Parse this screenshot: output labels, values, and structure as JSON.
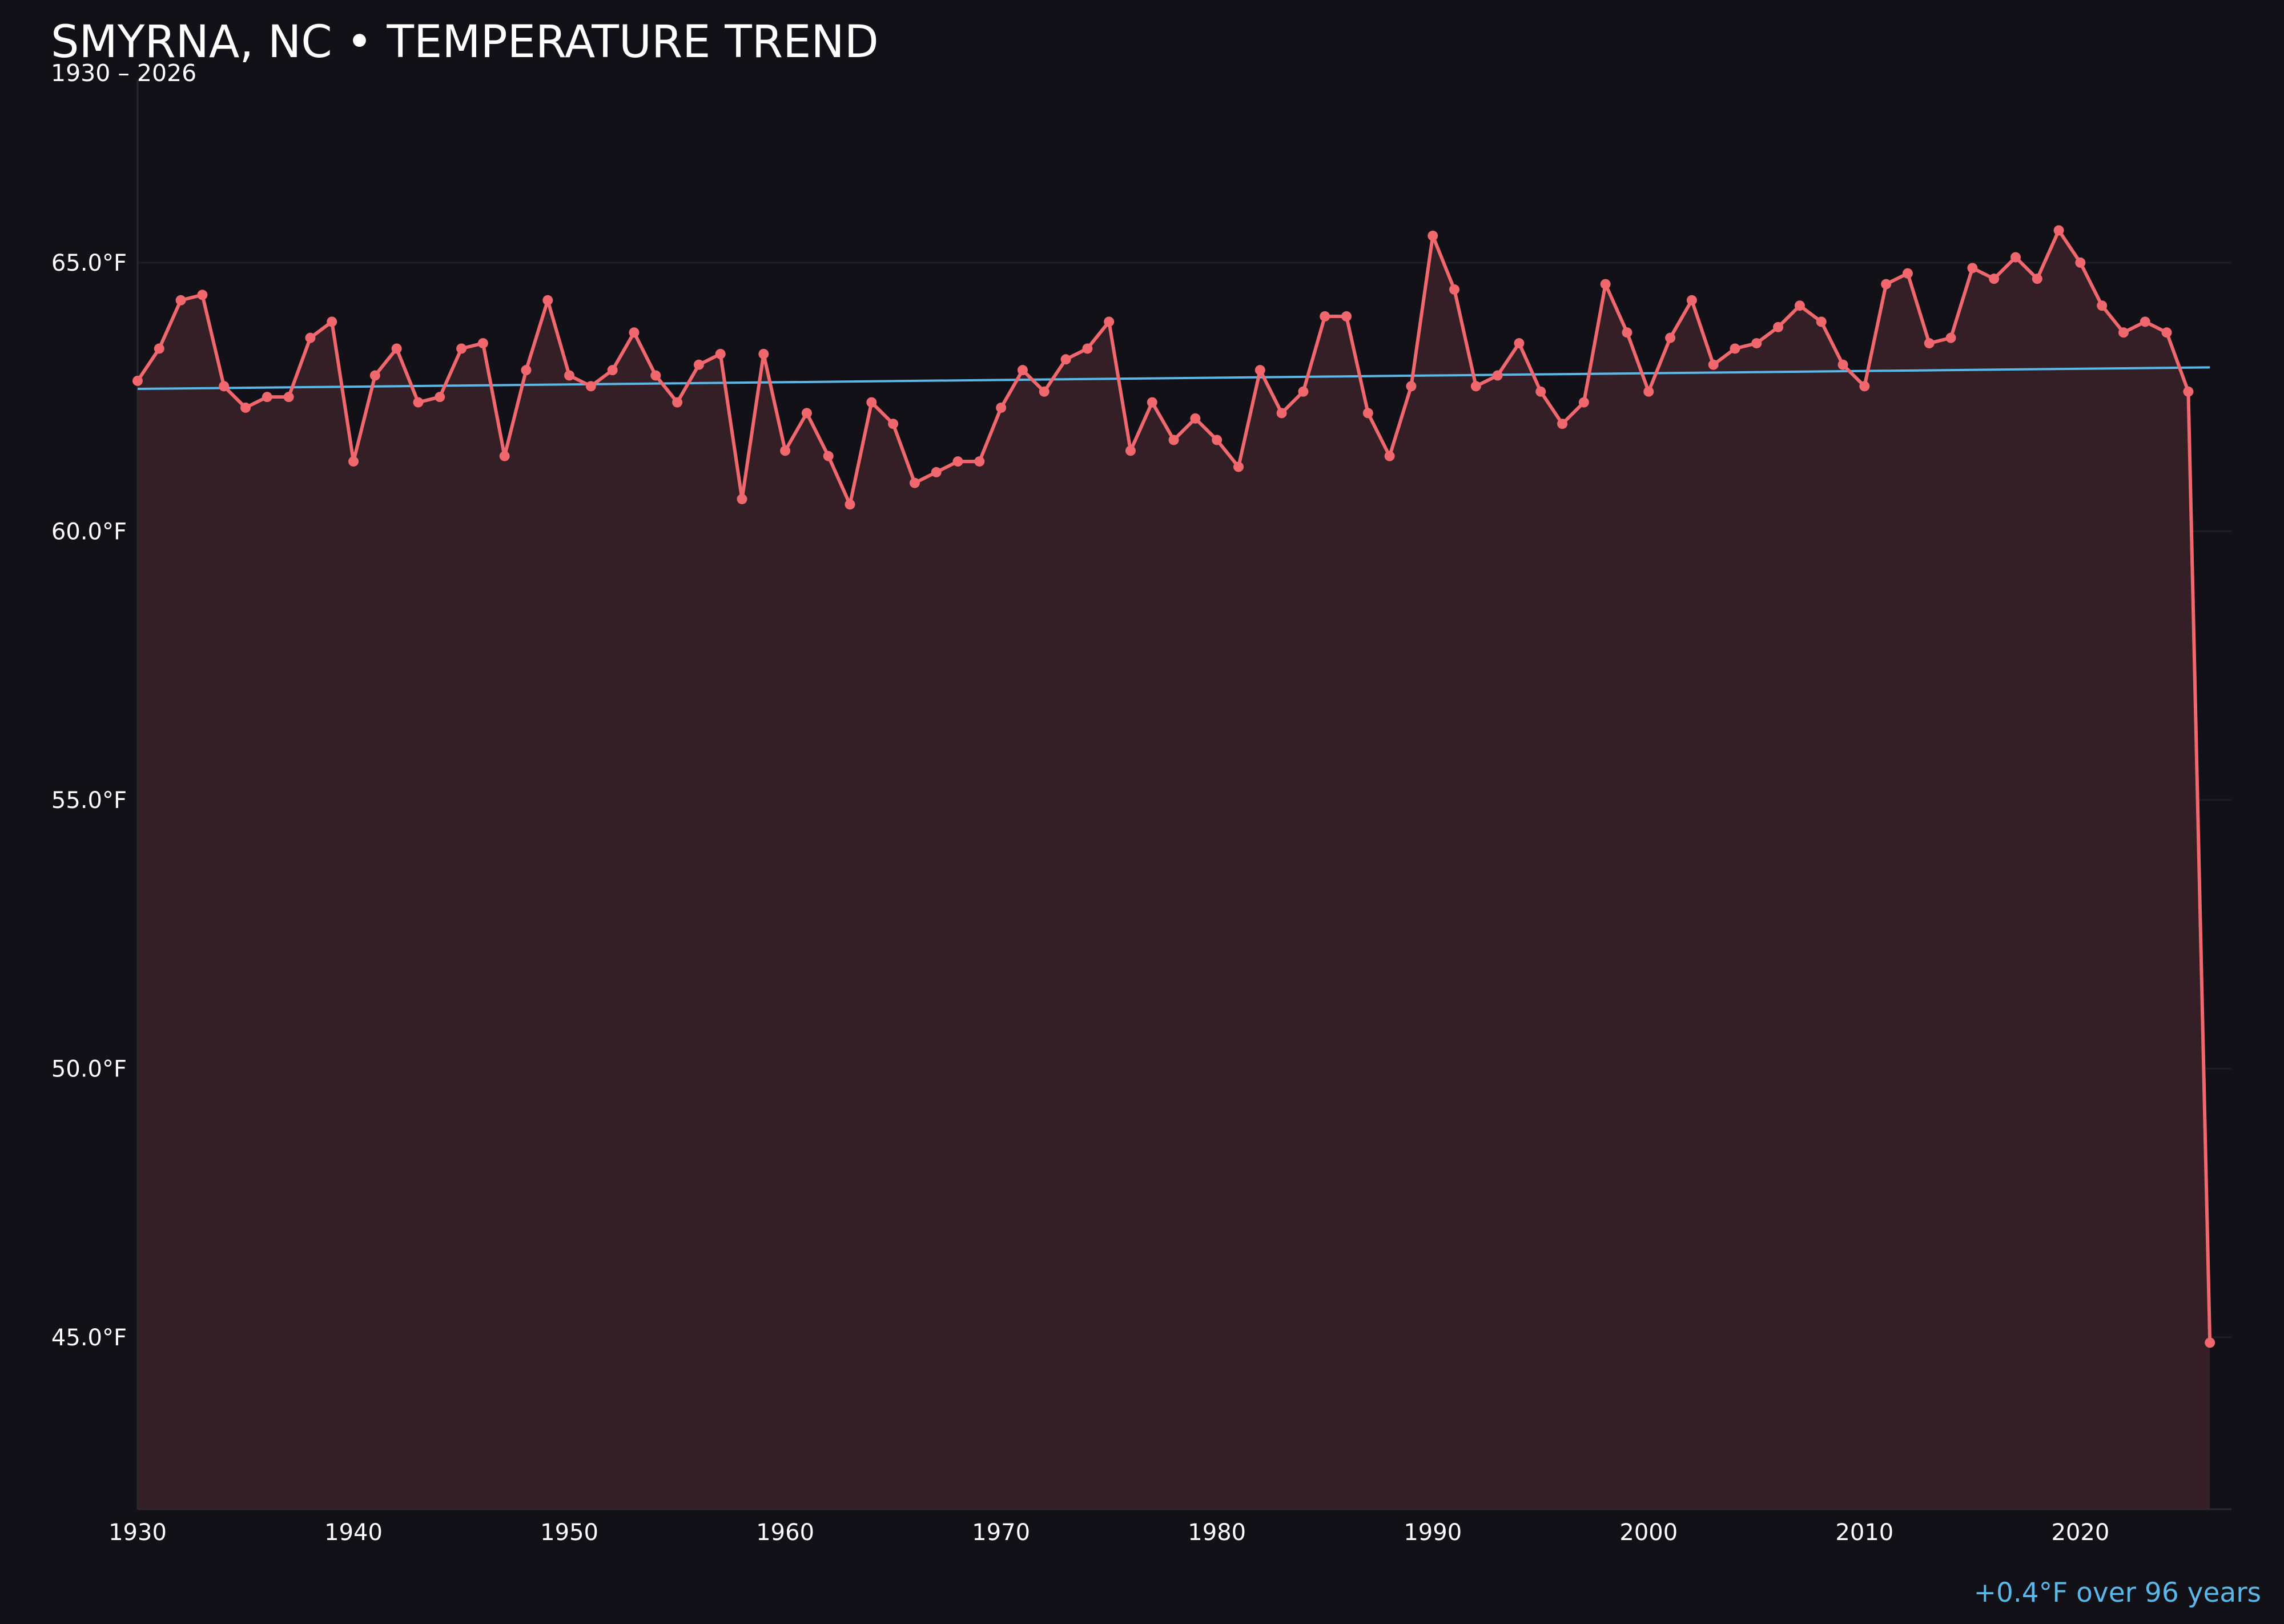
{
  "header": {
    "title": "SMYRNA, NC • TEMPERATURE TREND",
    "subtitle": "1930 – 2026"
  },
  "footer": {
    "trend_note": "+0.4°F over 96 years"
  },
  "chart_data": {
    "type": "line",
    "title": "SMYRNA, NC • TEMPERATURE TREND",
    "subtitle": "1930 – 2026",
    "xlabel": "",
    "ylabel": "",
    "xlim": [
      1930,
      2027
    ],
    "ylim": [
      41.8,
      68.4
    ],
    "x_ticks": [
      1930,
      1940,
      1950,
      1960,
      1970,
      1980,
      1990,
      2000,
      2010,
      2020
    ],
    "y_ticks": [
      45,
      50,
      55,
      60,
      65
    ],
    "y_tick_labels": [
      "45.0°F",
      "50.0°F",
      "55.0°F",
      "60.0°F",
      "65.0°F"
    ],
    "grid": true,
    "colors": {
      "line": "#f0686e",
      "fill": "#341f26",
      "trend": "#5ab8e8",
      "grid": "#1f1d24",
      "background": "#121118"
    },
    "series": [
      {
        "x": [
          1930,
          1931,
          1932,
          1933,
          1934,
          1935,
          1936,
          1937,
          1938,
          1939,
          1940,
          1941,
          1942,
          1943,
          1944,
          1945,
          1946,
          1947,
          1948,
          1949,
          1950,
          1951,
          1952,
          1953,
          1954,
          1955,
          1956,
          1957,
          1958,
          1959,
          1960,
          1961,
          1962,
          1963,
          1964,
          1965,
          1966,
          1967,
          1968,
          1969,
          1970,
          1971,
          1972,
          1973,
          1974,
          1975,
          1976,
          1977,
          1978,
          1979,
          1980,
          1981,
          1982,
          1983,
          1984,
          1985,
          1986,
          1987,
          1988,
          1989,
          1990,
          1991,
          1992,
          1993,
          1994,
          1995,
          1996,
          1997,
          1998,
          1999,
          2000,
          2001,
          2002,
          2003,
          2004,
          2005,
          2006,
          2007,
          2008,
          2009,
          2010,
          2011,
          2012,
          2013,
          2014,
          2015,
          2016,
          2017,
          2018,
          2019,
          2020,
          2021,
          2022,
          2023,
          2024,
          2025,
          2026
        ],
        "values": [
          62.8,
          63.4,
          64.3,
          64.4,
          62.7,
          62.3,
          62.5,
          62.5,
          63.6,
          63.9,
          61.3,
          62.9,
          63.4,
          62.4,
          62.5,
          63.4,
          63.5,
          61.4,
          63.0,
          64.3,
          62.9,
          62.7,
          63.0,
          63.7,
          62.9,
          62.4,
          63.1,
          63.3,
          60.6,
          63.3,
          61.5,
          62.2,
          61.4,
          60.5,
          62.4,
          62.0,
          60.9,
          61.1,
          61.3,
          61.3,
          62.3,
          63.0,
          62.6,
          63.2,
          63.4,
          63.9,
          61.5,
          62.4,
          61.7,
          62.1,
          61.7,
          61.2,
          63.0,
          62.2,
          62.6,
          64.0,
          64.0,
          62.2,
          61.4,
          62.7,
          65.5,
          64.5,
          62.7,
          62.9,
          63.5,
          62.6,
          62.0,
          62.4,
          64.6,
          63.7,
          62.6,
          63.6,
          64.3,
          63.1,
          63.4,
          63.5,
          63.8,
          64.2,
          63.9,
          63.1,
          62.7,
          64.6,
          64.8,
          63.5,
          63.6,
          64.9,
          64.7,
          65.1,
          64.7,
          65.6,
          65.0,
          64.2,
          63.7,
          63.9,
          63.7,
          62.6,
          44.9
        ]
      }
    ],
    "trend": {
      "x": [
        1930,
        2026
      ],
      "values": [
        62.65,
        63.05
      ]
    }
  }
}
